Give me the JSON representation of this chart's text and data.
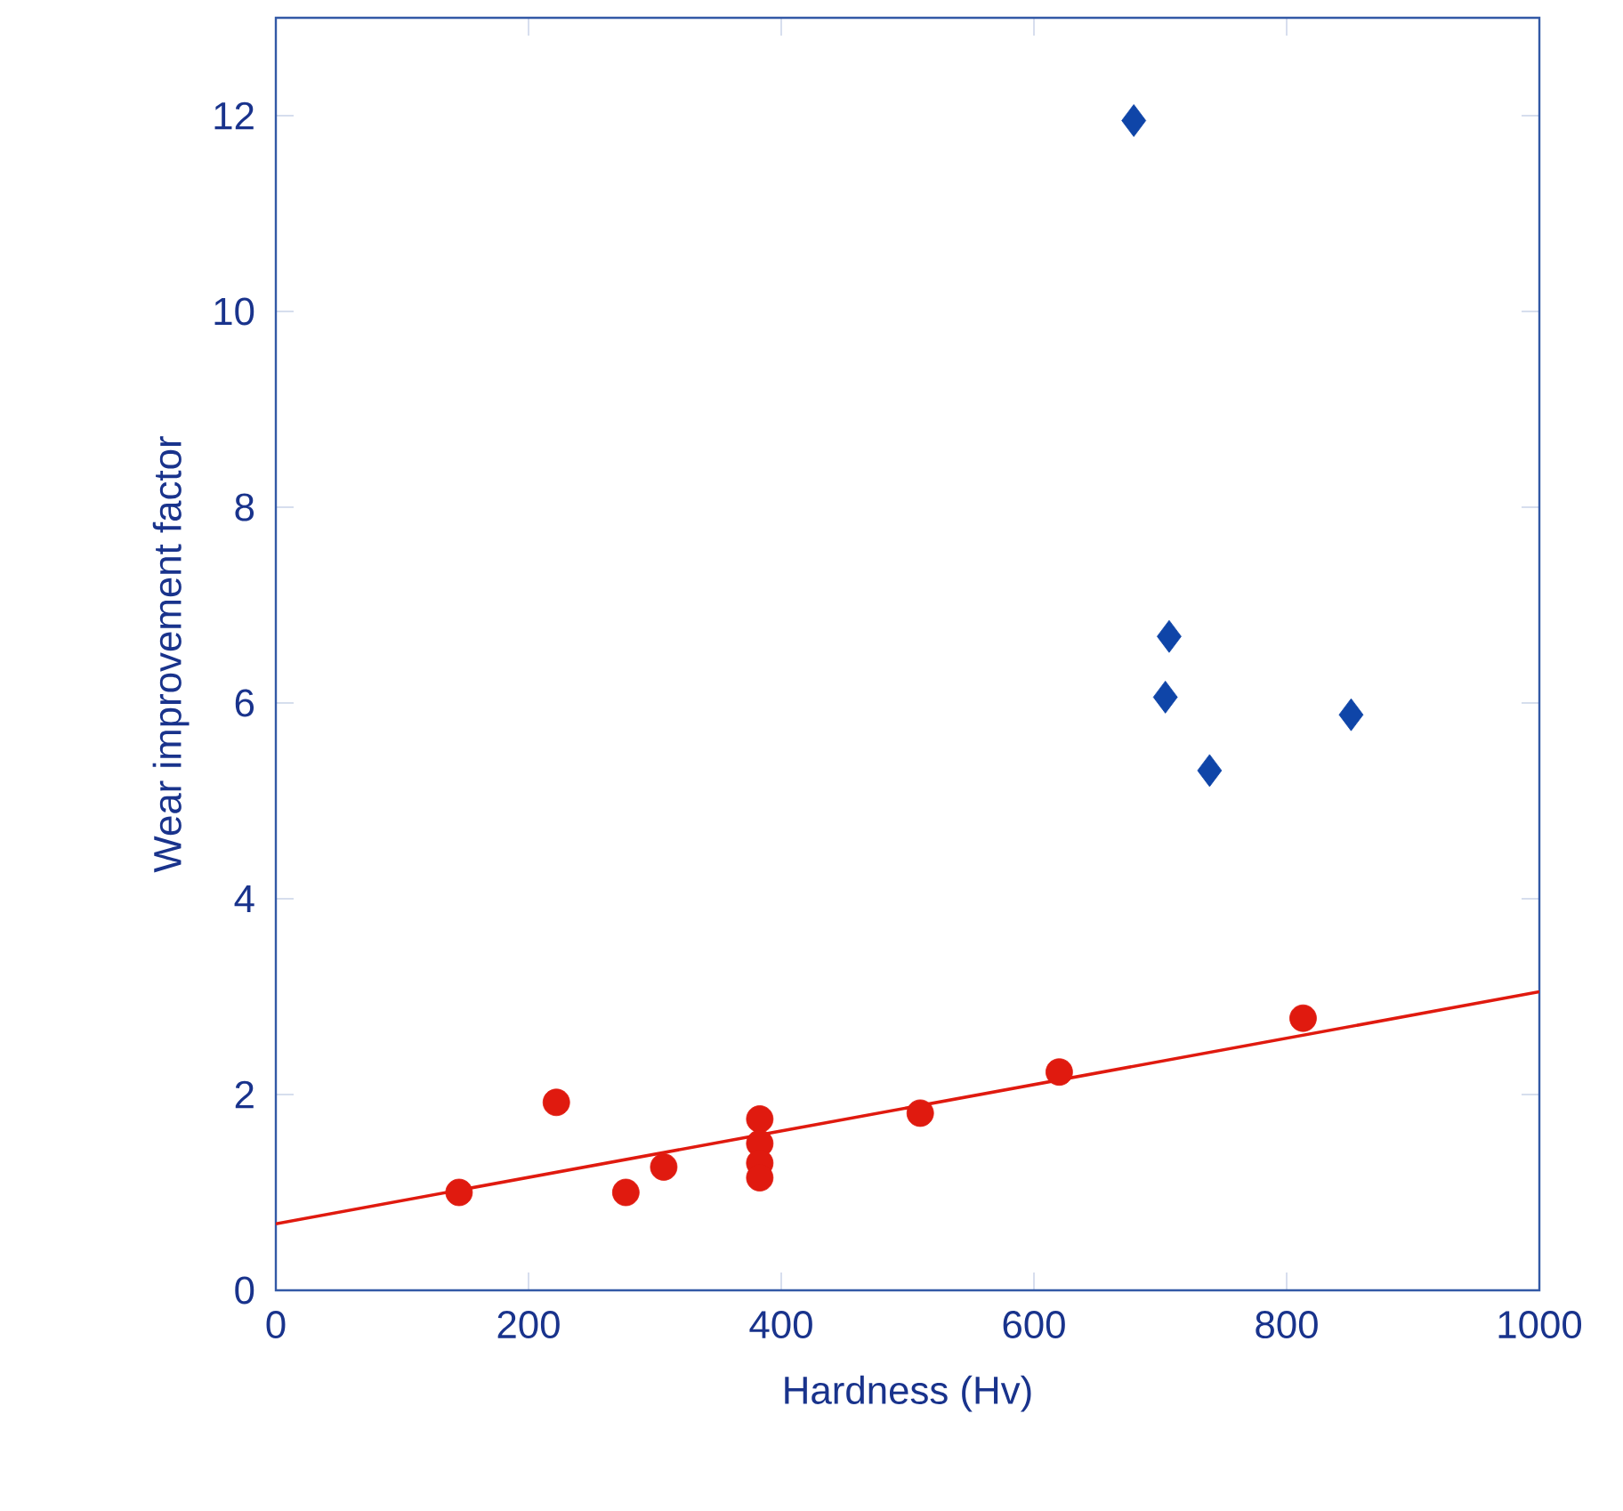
{
  "chart_data": {
    "type": "scatter",
    "xlabel": "Hardness (Hv)",
    "ylabel": "Wear improvement factor",
    "xlim": [
      0,
      1000
    ],
    "ylim": [
      0,
      13
    ],
    "xticks": [
      0,
      200,
      400,
      600,
      800,
      1000
    ],
    "yticks": [
      0,
      2,
      4,
      6,
      8,
      10,
      12
    ],
    "grid": false,
    "series": [
      {
        "color": "#e01a0f",
        "marker": "circle",
        "x": [
          145,
          222,
          277,
          307,
          383,
          383,
          383,
          383,
          510,
          620,
          813
        ],
        "values": [
          1.0,
          1.92,
          1.0,
          1.26,
          1.75,
          1.5,
          1.3,
          1.15,
          1.81,
          2.23,
          2.78
        ]
      },
      {
        "color": "#0f45a8",
        "marker": "diamond",
        "x": [
          679,
          707,
          704,
          739,
          851
        ],
        "values": [
          11.95,
          6.68,
          6.06,
          5.31,
          5.88
        ]
      },
      {
        "type": "line",
        "color": "#e01a0f",
        "marker": "none",
        "x": [
          0,
          1000
        ],
        "values": [
          0.68,
          3.05
        ]
      }
    ]
  }
}
